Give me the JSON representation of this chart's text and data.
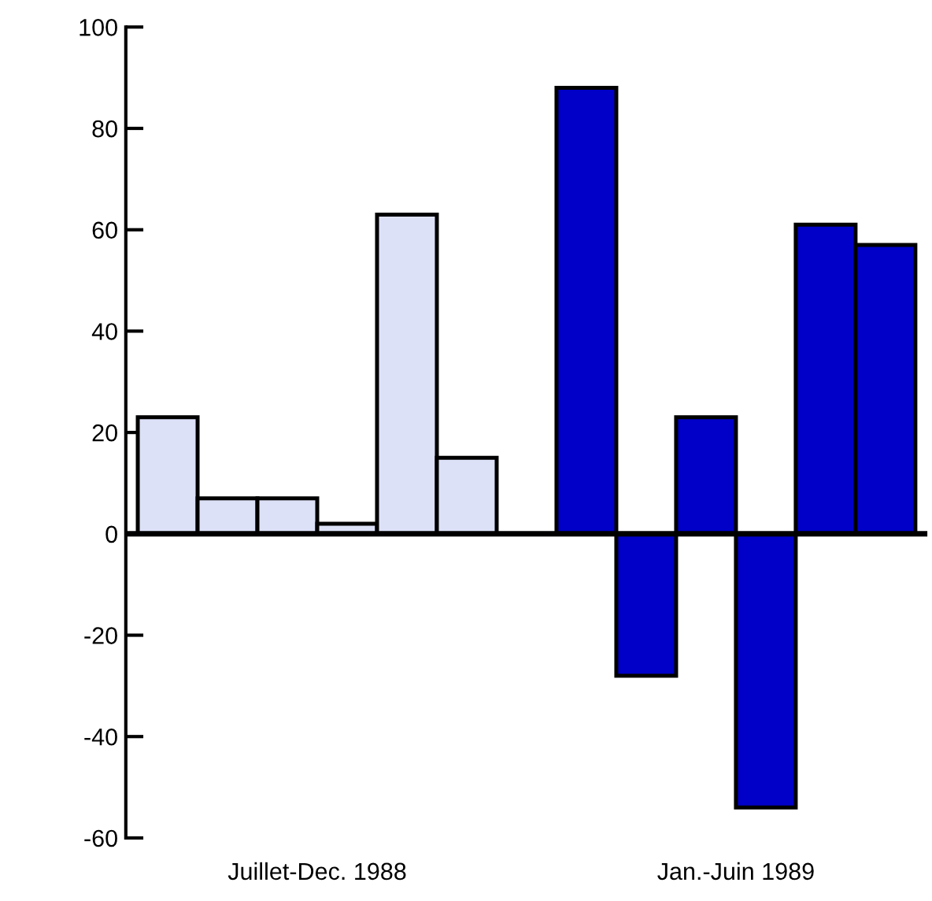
{
  "chart_data": {
    "type": "bar",
    "categories": [
      null,
      null,
      null,
      null,
      null,
      null,
      null,
      null,
      null,
      null,
      null,
      null,
      null
    ],
    "series": [
      {
        "color": "#dde1f7",
        "values": [
          23,
          7,
          7,
          2,
          63,
          15,
          null,
          null,
          null,
          null,
          null,
          null,
          null
        ]
      },
      {
        "color": "#0000c8",
        "values": [
          null,
          null,
          null,
          null,
          null,
          null,
          null,
          88,
          -28,
          23,
          -54,
          61,
          57
        ]
      }
    ],
    "ylim": [
      -60,
      100
    ],
    "yticks": [
      -60,
      -40,
      -20,
      0,
      20,
      40,
      60,
      80,
      100
    ],
    "ref_lines": [
      {
        "axis": "y",
        "value": 0,
        "color": "#000000"
      }
    ],
    "annotations": [
      "Juillet-Dec. 1988",
      "Jan.-Juin 1989"
    ],
    "grid": false,
    "legend": false
  }
}
